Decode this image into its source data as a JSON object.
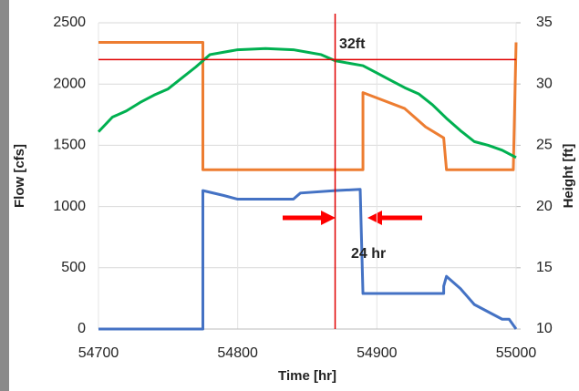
{
  "chart_data": {
    "type": "line",
    "xlabel": "Time [hr]",
    "ylabel": "Flow [cfs]",
    "y2label": "Height [ft]",
    "xlim": [
      54700,
      55000
    ],
    "xticks": [
      54700,
      54800,
      54900,
      55000
    ],
    "ylim": [
      0,
      2500
    ],
    "yticks": [
      0,
      500,
      1000,
      1500,
      2000,
      2500
    ],
    "y2lim": [
      10,
      35
    ],
    "y2ticks": [
      10,
      15,
      20,
      25,
      30,
      35
    ],
    "grid": true,
    "series": [
      {
        "color": "#ed7d31",
        "axis": "y",
        "x": [
          54700,
          54775,
          54775,
          54890,
          54890,
          54920,
          54935,
          54948,
          54950,
          54998,
          55000
        ],
        "values": [
          2340,
          2340,
          1300,
          1300,
          1930,
          1800,
          1650,
          1560,
          1300,
          1300,
          2340
        ]
      },
      {
        "color": "#00b050",
        "axis": "y2",
        "x": [
          54700,
          54710,
          54720,
          54730,
          54740,
          54750,
          54760,
          54770,
          54780,
          54790,
          54800,
          54820,
          54840,
          54850,
          54860,
          54870,
          54880,
          54890,
          54900,
          54910,
          54920,
          54930,
          54940,
          54950,
          54960,
          54970,
          54980,
          54990,
          55000
        ],
        "values": [
          26.1,
          27.3,
          27.8,
          28.5,
          29.1,
          29.6,
          30.5,
          31.4,
          32.4,
          32.6,
          32.8,
          32.9,
          32.8,
          32.6,
          32.4,
          31.9,
          31.7,
          31.5,
          30.9,
          30.3,
          29.7,
          29.2,
          28.3,
          27.2,
          26.2,
          25.3,
          25.0,
          24.6,
          24.0
        ]
      },
      {
        "color": "#4472c4",
        "axis": "y",
        "x": [
          54700,
          54775,
          54775,
          54790,
          54800,
          54840,
          54845,
          54870,
          54888,
          54890,
          54948,
          54948,
          54950,
          54960,
          54970,
          54990,
          54995,
          55000
        ],
        "values": [
          0,
          0,
          1130,
          1090,
          1060,
          1060,
          1110,
          1130,
          1140,
          290,
          290,
          350,
          430,
          330,
          200,
          80,
          80,
          0
        ]
      }
    ],
    "ref_lines": [
      {
        "axis": "x",
        "value": 54870,
        "color": "#e00000"
      },
      {
        "axis": "y2",
        "value": 32,
        "color": "#e00000"
      }
    ],
    "annotations": [
      {
        "text": "32ft",
        "color": "#e00000"
      },
      {
        "text": "24 hr",
        "color": "#e00000"
      }
    ]
  }
}
